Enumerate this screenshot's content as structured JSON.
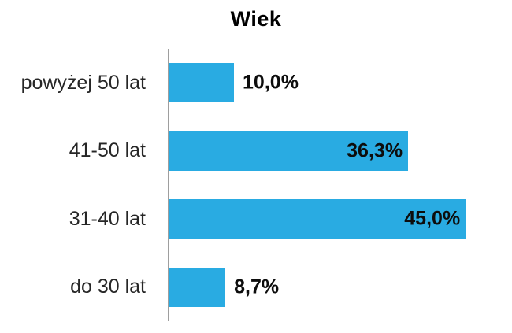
{
  "chart_data": {
    "type": "bar",
    "orientation": "horizontal",
    "title": "Wiek",
    "categories": [
      "powyżej 50 lat",
      "41-50 lat",
      "31-40 lat",
      "do 30 lat"
    ],
    "values": [
      10.0,
      36.3,
      45.0,
      8.7
    ],
    "value_labels": [
      "10,0%",
      "36,3%",
      "45,0%",
      "8,7%"
    ],
    "label_position": [
      "outside",
      "inside",
      "inside",
      "outside"
    ],
    "xlabel": "",
    "ylabel": "",
    "xlim": [
      0,
      52
    ],
    "grid": false,
    "legend": false,
    "bar_color": "#29ABE2",
    "axis_line_color": "#9e9e9e",
    "title_color": "#000000",
    "category_text_color": "#262626",
    "value_text_color": "#0d0d0d",
    "background": "#ffffff"
  }
}
